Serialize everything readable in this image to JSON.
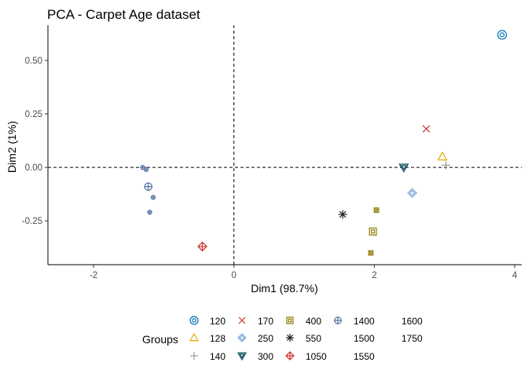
{
  "chart_data": {
    "type": "scatter",
    "title": "PCA - Carpet Age dataset",
    "xlabel": "Dim1 (98.7%)",
    "ylabel": "Dim2 (1%)",
    "xlim": [
      -2.65,
      4.1
    ],
    "ylim": [
      -0.455,
      0.665
    ],
    "x_ticks": [
      -2,
      0,
      2,
      4
    ],
    "x_tick_labels": [
      "-2",
      "0",
      "2",
      "4"
    ],
    "y_ticks": [
      -0.25,
      0.0,
      0.25,
      0.5
    ],
    "y_tick_labels": [
      "-0.25",
      "0.00",
      "0.25",
      "0.50"
    ],
    "reference_lines": {
      "x": 0,
      "y": 0,
      "style": "dashed"
    },
    "grid": false,
    "legend": {
      "title": "Groups",
      "position": "bottom"
    },
    "series": [
      {
        "name": "120",
        "color": "#0072b2",
        "shape": "circle-dot",
        "points": [
          [
            3.82,
            0.62
          ]
        ]
      },
      {
        "name": "128",
        "color": "#e6a800",
        "shape": "triangle",
        "points": [
          [
            2.97,
            0.05
          ]
        ]
      },
      {
        "name": "140",
        "color": "#999999",
        "shape": "plus",
        "points": [
          [
            3.02,
            0.01
          ]
        ]
      },
      {
        "name": "170",
        "color": "#cc3333",
        "shape": "cross",
        "points": [
          [
            2.74,
            0.18
          ]
        ]
      },
      {
        "name": "250",
        "color": "#79a8d6",
        "shape": "diamond",
        "points": [
          [
            2.54,
            -0.12
          ]
        ]
      },
      {
        "name": "300",
        "color": "#0b4d5a",
        "shape": "triangle-down",
        "points": [
          [
            2.42,
            0.0
          ]
        ]
      },
      {
        "name": "400",
        "color": "#8a7a00",
        "shape": "square-dot",
        "points": [
          [
            1.98,
            -0.3
          ],
          [
            2.03,
            -0.2
          ],
          [
            1.95,
            -0.4
          ]
        ]
      },
      {
        "name": "550",
        "color": "#222222",
        "shape": "asterisk",
        "points": [
          [
            1.55,
            -0.22
          ]
        ]
      },
      {
        "name": "1050",
        "color": "#cc3333",
        "shape": "diamond-plus",
        "points": [
          [
            -0.45,
            -0.37
          ]
        ]
      },
      {
        "name": "1400",
        "color": "#4f6fa0",
        "shape": "circle-plus",
        "points": [
          [
            -1.22,
            -0.09
          ],
          [
            -1.3,
            0.0
          ],
          [
            -1.25,
            -0.01
          ],
          [
            -1.15,
            -0.14
          ],
          [
            -1.2,
            -0.21
          ]
        ]
      },
      {
        "name": "1500",
        "color": "#4f6fa0",
        "shape": "none",
        "points": []
      },
      {
        "name": "1550",
        "color": "#4f6fa0",
        "shape": "none",
        "points": []
      },
      {
        "name": "1600",
        "color": "#4f6fa0",
        "shape": "none",
        "points": []
      },
      {
        "name": "1750",
        "color": "#4f6fa0",
        "shape": "none",
        "points": []
      }
    ]
  }
}
